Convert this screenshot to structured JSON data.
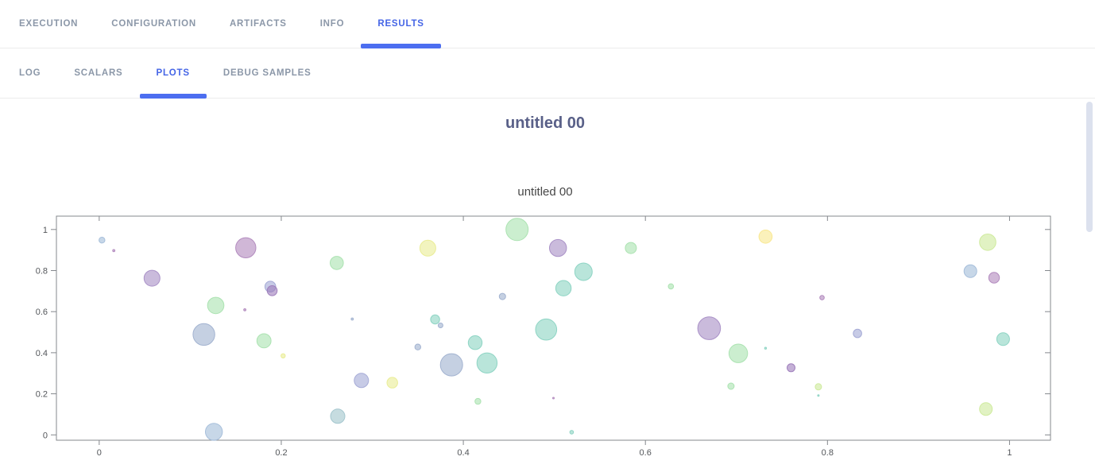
{
  "header": {
    "primary_tabs": [
      {
        "id": "execution",
        "label": "EXECUTION",
        "active": false
      },
      {
        "id": "configuration",
        "label": "CONFIGURATION",
        "active": false
      },
      {
        "id": "artifacts",
        "label": "ARTIFACTS",
        "active": false
      },
      {
        "id": "info",
        "label": "INFO",
        "active": false
      },
      {
        "id": "results",
        "label": "RESULTS",
        "active": true
      }
    ],
    "secondary_tabs": [
      {
        "id": "log",
        "label": "LOG",
        "active": false
      },
      {
        "id": "scalars",
        "label": "SCALARS",
        "active": false
      },
      {
        "id": "plots",
        "label": "PLOTS",
        "active": true
      },
      {
        "id": "debug-samples",
        "label": "DEBUG SAMPLES",
        "active": false
      }
    ]
  },
  "main": {
    "section_title": "untitled 00"
  },
  "chart_data": {
    "type": "scatter",
    "title": "untitled 00",
    "xlabel": "",
    "ylabel": "",
    "xlim": [
      -0.047,
      1.045
    ],
    "ylim": [
      -0.026,
      1.065
    ],
    "x_ticks": [
      "0",
      "0.2",
      "0.4",
      "0.6",
      "0.8",
      "1"
    ],
    "x_tick_values": [
      0,
      0.2,
      0.4,
      0.6,
      0.8,
      1
    ],
    "y_ticks": [
      "0",
      "0.2",
      "0.4",
      "0.6",
      "0.8",
      "1"
    ],
    "y_tick_values": [
      0,
      0.2,
      0.4,
      0.6,
      0.8,
      1
    ],
    "grid": false,
    "legend": false,
    "marker_fill_opacity": 0.6,
    "palette": {
      "blue": "#a2bcd9",
      "steel": "#9fb0cf",
      "periwinkle": "#a2a8d5",
      "cadet": "#a0c4cc",
      "purple": "#a78dc5",
      "violet": "#9d7cba",
      "magenta": "#b087bd",
      "green": "#a9e2af",
      "teal": "#8ad3c2",
      "yellow": "#e9ec94",
      "warmyellow": "#f9e78d",
      "yellowgreen": "#cdea9b"
    },
    "points": [
      {
        "x": 0.003,
        "y": 0.948,
        "r": 3.7,
        "c": "blue"
      },
      {
        "x": 0.016,
        "y": 0.897,
        "r": 1.4,
        "c": "magenta"
      },
      {
        "x": 0.058,
        "y": 0.763,
        "r": 10.0,
        "c": "purple"
      },
      {
        "x": 0.161,
        "y": 0.911,
        "r": 12.7,
        "c": "magenta"
      },
      {
        "x": 0.188,
        "y": 0.722,
        "r": 6.8,
        "c": "periwinkle"
      },
      {
        "x": 0.19,
        "y": 0.702,
        "r": 6.3,
        "c": "violet"
      },
      {
        "x": 0.128,
        "y": 0.63,
        "r": 10.3,
        "c": "green"
      },
      {
        "x": 0.16,
        "y": 0.609,
        "r": 1.4,
        "c": "magenta"
      },
      {
        "x": 0.115,
        "y": 0.489,
        "r": 13.7,
        "c": "steel"
      },
      {
        "x": 0.181,
        "y": 0.458,
        "r": 8.9,
        "c": "green"
      },
      {
        "x": 0.202,
        "y": 0.385,
        "r": 2.7,
        "c": "yellow"
      },
      {
        "x": 0.126,
        "y": 0.015,
        "r": 10.7,
        "c": "blue"
      },
      {
        "x": 0.262,
        "y": 0.091,
        "r": 9.0,
        "c": "cadet"
      },
      {
        "x": 0.261,
        "y": 0.837,
        "r": 8.3,
        "c": "green"
      },
      {
        "x": 0.278,
        "y": 0.564,
        "r": 1.4,
        "c": "steel"
      },
      {
        "x": 0.288,
        "y": 0.265,
        "r": 9.0,
        "c": "periwinkle"
      },
      {
        "x": 0.322,
        "y": 0.254,
        "r": 6.7,
        "c": "yellow"
      },
      {
        "x": 0.361,
        "y": 0.909,
        "r": 10.0,
        "c": "yellow"
      },
      {
        "x": 0.369,
        "y": 0.562,
        "r": 5.7,
        "c": "teal"
      },
      {
        "x": 0.375,
        "y": 0.533,
        "r": 3.0,
        "c": "steel"
      },
      {
        "x": 0.35,
        "y": 0.428,
        "r": 3.7,
        "c": "steel"
      },
      {
        "x": 0.387,
        "y": 0.341,
        "r": 14.0,
        "c": "steel"
      },
      {
        "x": 0.413,
        "y": 0.449,
        "r": 8.7,
        "c": "teal"
      },
      {
        "x": 0.426,
        "y": 0.35,
        "r": 12.7,
        "c": "teal"
      },
      {
        "x": 0.416,
        "y": 0.163,
        "r": 3.7,
        "c": "green"
      },
      {
        "x": 0.459,
        "y": 1.0,
        "r": 14.0,
        "c": "green"
      },
      {
        "x": 0.504,
        "y": 0.91,
        "r": 10.7,
        "c": "purple"
      },
      {
        "x": 0.443,
        "y": 0.674,
        "r": 4.0,
        "c": "steel"
      },
      {
        "x": 0.51,
        "y": 0.714,
        "r": 9.7,
        "c": "teal"
      },
      {
        "x": 0.491,
        "y": 0.513,
        "r": 13.3,
        "c": "teal"
      },
      {
        "x": 0.499,
        "y": 0.179,
        "r": 1.0,
        "c": "magenta"
      },
      {
        "x": 0.519,
        "y": 0.013,
        "r": 2.3,
        "c": "teal"
      },
      {
        "x": 0.532,
        "y": 0.794,
        "r": 11.0,
        "c": "teal"
      },
      {
        "x": 0.584,
        "y": 0.91,
        "r": 7.0,
        "c": "green"
      },
      {
        "x": 0.628,
        "y": 0.723,
        "r": 3.3,
        "c": "green"
      },
      {
        "x": 0.732,
        "y": 0.965,
        "r": 8.3,
        "c": "warmyellow"
      },
      {
        "x": 0.67,
        "y": 0.519,
        "r": 14.3,
        "c": "purple"
      },
      {
        "x": 0.702,
        "y": 0.397,
        "r": 11.7,
        "c": "green"
      },
      {
        "x": 0.732,
        "y": 0.422,
        "r": 1.2,
        "c": "teal"
      },
      {
        "x": 0.76,
        "y": 0.327,
        "r": 5.0,
        "c": "violet"
      },
      {
        "x": 0.694,
        "y": 0.237,
        "r": 4.0,
        "c": "green"
      },
      {
        "x": 0.794,
        "y": 0.668,
        "r": 2.8,
        "c": "magenta"
      },
      {
        "x": 0.79,
        "y": 0.234,
        "r": 4.0,
        "c": "yellowgreen"
      },
      {
        "x": 0.79,
        "y": 0.192,
        "r": 1.0,
        "c": "teal"
      },
      {
        "x": 0.833,
        "y": 0.494,
        "r": 5.3,
        "c": "periwinkle"
      },
      {
        "x": 0.976,
        "y": 0.938,
        "r": 10.3,
        "c": "yellowgreen"
      },
      {
        "x": 0.957,
        "y": 0.797,
        "r": 8.0,
        "c": "blue"
      },
      {
        "x": 0.983,
        "y": 0.765,
        "r": 6.7,
        "c": "magenta"
      },
      {
        "x": 0.993,
        "y": 0.466,
        "r": 8.0,
        "c": "teal"
      },
      {
        "x": 0.974,
        "y": 0.126,
        "r": 8.0,
        "c": "yellowgreen"
      }
    ]
  },
  "colors": {
    "accent_blue": "#4c6ef0",
    "active_tab_text": "#4565e6",
    "inactive_tab_text": "#8b97a8",
    "section_title": "#596088",
    "plot_title": "#474747",
    "axis_line": "#85888d",
    "tick_label": "#53565a",
    "divider": "#ececec",
    "scrollbar_thumb": "#dce1ee"
  }
}
